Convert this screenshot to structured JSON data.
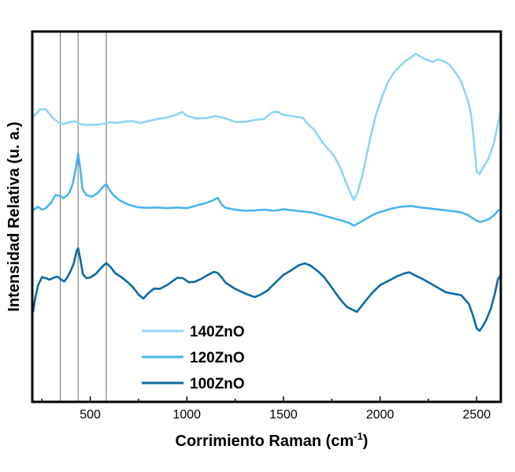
{
  "chart_data": {
    "type": "line",
    "title": "",
    "xlabel": "Corrimiento Raman (cm",
    "xlabel_sup": "-1",
    "xlabel_suffix": ")",
    "ylabel": "Intensidad Relativa (u. a.)",
    "xlim": [
      200,
      2625
    ],
    "ylim": [
      0,
      100
    ],
    "y_ticks_visible": false,
    "grid": false,
    "x_ticks": [
      500,
      1000,
      1500,
      2000,
      2500
    ],
    "x_tick_labels": [
      "500",
      "1000",
      "1500",
      "2000",
      "2500"
    ],
    "reference_lines": [
      345,
      437,
      583
    ],
    "legend_position": "bottom-center",
    "series": [
      {
        "name": "140ZnO",
        "color": "#8fd4f7",
        "points": [
          [
            205,
            77
          ],
          [
            240,
            79
          ],
          [
            270,
            79
          ],
          [
            300,
            77
          ],
          [
            335,
            75.5
          ],
          [
            360,
            75
          ],
          [
            390,
            75.5
          ],
          [
            420,
            75.8
          ],
          [
            450,
            75
          ],
          [
            480,
            74.8
          ],
          [
            520,
            74.8
          ],
          [
            560,
            75
          ],
          [
            600,
            75.5
          ],
          [
            640,
            75.3
          ],
          [
            680,
            75.7
          ],
          [
            720,
            75.8
          ],
          [
            760,
            75.3
          ],
          [
            800,
            75.8
          ],
          [
            850,
            76.4
          ],
          [
            900,
            76.8
          ],
          [
            950,
            77.6
          ],
          [
            975,
            78.3
          ],
          [
            1000,
            77.3
          ],
          [
            1050,
            76.5
          ],
          [
            1100,
            76.6
          ],
          [
            1150,
            77.2
          ],
          [
            1200,
            76.5
          ],
          [
            1250,
            75.6
          ],
          [
            1300,
            75.6
          ],
          [
            1350,
            76.1
          ],
          [
            1400,
            76.4
          ],
          [
            1440,
            78.2
          ],
          [
            1470,
            78.3
          ],
          [
            1500,
            77.5
          ],
          [
            1550,
            77.1
          ],
          [
            1600,
            76.7
          ],
          [
            1630,
            74.8
          ],
          [
            1660,
            73.4
          ],
          [
            1700,
            70.2
          ],
          [
            1730,
            68.3
          ],
          [
            1760,
            66.5
          ],
          [
            1790,
            63.7
          ],
          [
            1820,
            59.8
          ],
          [
            1845,
            56.6
          ],
          [
            1865,
            54.5
          ],
          [
            1885,
            56.7
          ],
          [
            1910,
            61.5
          ],
          [
            1930,
            66.5
          ],
          [
            1955,
            72.5
          ],
          [
            1980,
            77.7
          ],
          [
            2010,
            82.3
          ],
          [
            2040,
            86.3
          ],
          [
            2070,
            88.8
          ],
          [
            2100,
            90.5
          ],
          [
            2130,
            92
          ],
          [
            2160,
            93
          ],
          [
            2185,
            94
          ],
          [
            2210,
            93.2
          ],
          [
            2240,
            92.4
          ],
          [
            2270,
            91.8
          ],
          [
            2300,
            92.5
          ],
          [
            2330,
            92
          ],
          [
            2360,
            91
          ],
          [
            2390,
            89
          ],
          [
            2420,
            86.5
          ],
          [
            2450,
            82
          ],
          [
            2470,
            78
          ],
          [
            2485,
            71
          ],
          [
            2500,
            62.2
          ],
          [
            2515,
            61.5
          ],
          [
            2530,
            63
          ],
          [
            2560,
            65.5
          ],
          [
            2590,
            70
          ],
          [
            2610,
            75
          ],
          [
            2622,
            78
          ]
        ]
      },
      {
        "name": "120ZnO",
        "color": "#4ab4ee",
        "points": [
          [
            205,
            51.8
          ],
          [
            230,
            52.7
          ],
          [
            250,
            51.9
          ],
          [
            270,
            52.3
          ],
          [
            300,
            54
          ],
          [
            320,
            55.8
          ],
          [
            345,
            55.6
          ],
          [
            360,
            55
          ],
          [
            380,
            55.7
          ],
          [
            395,
            56.8
          ],
          [
            410,
            59
          ],
          [
            425,
            63
          ],
          [
            437,
            67
          ],
          [
            447,
            63.5
          ],
          [
            460,
            57.5
          ],
          [
            480,
            55.8
          ],
          [
            510,
            55.4
          ],
          [
            540,
            56.5
          ],
          [
            565,
            58
          ],
          [
            583,
            58.8
          ],
          [
            600,
            57.2
          ],
          [
            620,
            55.8
          ],
          [
            650,
            54.5
          ],
          [
            690,
            53.4
          ],
          [
            740,
            52.6
          ],
          [
            790,
            52.4
          ],
          [
            850,
            52.5
          ],
          [
            900,
            52.3
          ],
          [
            950,
            52.5
          ],
          [
            1000,
            52.3
          ],
          [
            1050,
            53
          ],
          [
            1100,
            53.7
          ],
          [
            1140,
            54.5
          ],
          [
            1160,
            55.1
          ],
          [
            1180,
            53.3
          ],
          [
            1200,
            52.4
          ],
          [
            1250,
            51.9
          ],
          [
            1300,
            51.6
          ],
          [
            1350,
            51.7
          ],
          [
            1400,
            51.9
          ],
          [
            1450,
            51.6
          ],
          [
            1500,
            52
          ],
          [
            1550,
            51.7
          ],
          [
            1600,
            51.4
          ],
          [
            1650,
            51.1
          ],
          [
            1700,
            50.4
          ],
          [
            1750,
            49.7
          ],
          [
            1800,
            49
          ],
          [
            1840,
            48.3
          ],
          [
            1865,
            47.6
          ],
          [
            1890,
            48.3
          ],
          [
            1930,
            49.5
          ],
          [
            1970,
            50.7
          ],
          [
            2010,
            51.4
          ],
          [
            2060,
            52.2
          ],
          [
            2110,
            52.7
          ],
          [
            2160,
            52.9
          ],
          [
            2210,
            52.5
          ],
          [
            2260,
            52.2
          ],
          [
            2310,
            51.9
          ],
          [
            2360,
            51.6
          ],
          [
            2410,
            51.3
          ],
          [
            2450,
            50.6
          ],
          [
            2480,
            49.6
          ],
          [
            2500,
            48.9
          ],
          [
            2520,
            48.6
          ],
          [
            2540,
            48.9
          ],
          [
            2565,
            49.4
          ],
          [
            2590,
            50.4
          ],
          [
            2610,
            51.6
          ],
          [
            2622,
            52
          ]
        ]
      },
      {
        "name": "100ZnO",
        "color": "#0b6aa6",
        "points": [
          [
            205,
            24.5
          ],
          [
            215,
            28
          ],
          [
            230,
            31.5
          ],
          [
            250,
            33.7
          ],
          [
            270,
            33.4
          ],
          [
            290,
            33
          ],
          [
            310,
            33.5
          ],
          [
            330,
            33.8
          ],
          [
            350,
            33
          ],
          [
            365,
            32.5
          ],
          [
            380,
            33.5
          ],
          [
            400,
            35.5
          ],
          [
            415,
            37.5
          ],
          [
            430,
            40.8
          ],
          [
            437,
            41.5
          ],
          [
            447,
            39
          ],
          [
            462,
            34.5
          ],
          [
            480,
            33.4
          ],
          [
            500,
            33.6
          ],
          [
            530,
            34.6
          ],
          [
            560,
            36.4
          ],
          [
            583,
            37.5
          ],
          [
            605,
            36.4
          ],
          [
            630,
            34.7
          ],
          [
            660,
            33.7
          ],
          [
            690,
            32.5
          ],
          [
            720,
            31
          ],
          [
            750,
            29
          ],
          [
            775,
            27.9
          ],
          [
            800,
            29.3
          ],
          [
            830,
            30.6
          ],
          [
            860,
            30.5
          ],
          [
            900,
            31.6
          ],
          [
            950,
            33.5
          ],
          [
            980,
            33.4
          ],
          [
            1010,
            32.3
          ],
          [
            1040,
            32.4
          ],
          [
            1070,
            33.1
          ],
          [
            1110,
            34.3
          ],
          [
            1140,
            35.1
          ],
          [
            1160,
            34.8
          ],
          [
            1180,
            33.6
          ],
          [
            1200,
            32.2
          ],
          [
            1250,
            30.5
          ],
          [
            1300,
            29.3
          ],
          [
            1350,
            28.3
          ],
          [
            1380,
            28.9
          ],
          [
            1420,
            30.2
          ],
          [
            1460,
            32.3
          ],
          [
            1500,
            34.3
          ],
          [
            1540,
            35.5
          ],
          [
            1580,
            36.9
          ],
          [
            1610,
            37.4
          ],
          [
            1640,
            36.8
          ],
          [
            1680,
            35.2
          ],
          [
            1710,
            33.7
          ],
          [
            1740,
            31.6
          ],
          [
            1770,
            29.4
          ],
          [
            1800,
            27.3
          ],
          [
            1830,
            25.6
          ],
          [
            1860,
            24.8
          ],
          [
            1880,
            24.3
          ],
          [
            1900,
            25.6
          ],
          [
            1930,
            27.6
          ],
          [
            1960,
            29.5
          ],
          [
            2000,
            31.5
          ],
          [
            2040,
            32.6
          ],
          [
            2080,
            33.7
          ],
          [
            2120,
            34.6
          ],
          [
            2150,
            35
          ],
          [
            2180,
            34.2
          ],
          [
            2220,
            33.2
          ],
          [
            2260,
            32
          ],
          [
            2300,
            30.8
          ],
          [
            2340,
            29.6
          ],
          [
            2380,
            29.2
          ],
          [
            2420,
            28.8
          ],
          [
            2460,
            26.4
          ],
          [
            2480,
            23.5
          ],
          [
            2500,
            19.9
          ],
          [
            2515,
            19.2
          ],
          [
            2530,
            20.3
          ],
          [
            2550,
            22.2
          ],
          [
            2575,
            25.4
          ],
          [
            2595,
            29.4
          ],
          [
            2610,
            33.1
          ],
          [
            2622,
            34
          ]
        ]
      }
    ]
  }
}
